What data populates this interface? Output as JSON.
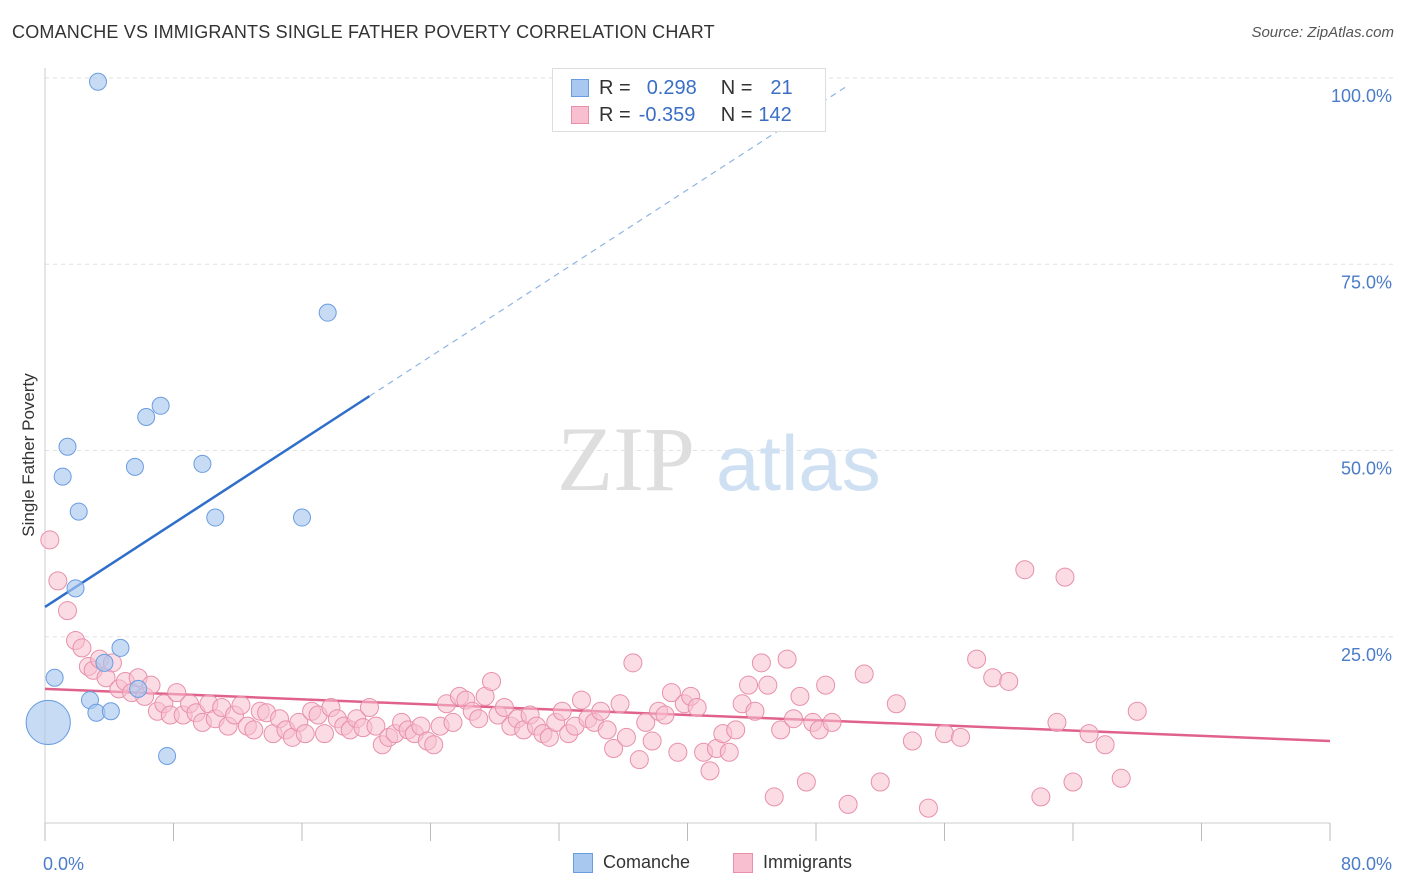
{
  "title": "COMANCHE VS IMMIGRANTS SINGLE FATHER POVERTY CORRELATION CHART",
  "source": "Source: ZipAtlas.com",
  "watermark": {
    "zip": "ZIP",
    "atlas": "atlas"
  },
  "legend": {
    "rows": [
      {
        "r_label": "R =",
        "r_value": "0.298",
        "n_label": "N =",
        "n_value": "21",
        "color": "#a9c8f0",
        "border": "#6a9de0"
      },
      {
        "r_label": "R =",
        "r_value": "-0.359",
        "n_label": "N =",
        "n_value": "142",
        "color": "#f7bfd0",
        "border": "#e890aa"
      }
    ],
    "bottom": [
      {
        "label": "Comanche",
        "color": "#a9c8f0",
        "border": "#6a9de0"
      },
      {
        "label": "Immigrants",
        "color": "#f7bfd0",
        "border": "#e890aa"
      }
    ]
  },
  "chart_data": {
    "type": "scatter",
    "title": "COMANCHE VS IMMIGRANTS SINGLE FATHER POVERTY CORRELATION CHART",
    "xlabel": "",
    "ylabel": "Single Father Poverty",
    "xlim": [
      0,
      80
    ],
    "ylim": [
      0,
      100
    ],
    "x_tick_labels": [
      "0.0%",
      "80.0%"
    ],
    "y_tick_labels": [
      "25.0%",
      "50.0%",
      "75.0%",
      "100.0%"
    ],
    "y_ticks": [
      25,
      50,
      75,
      100
    ],
    "grid": true,
    "legend_position": "top-center",
    "series": [
      {
        "name": "Comanche",
        "color": "#a9c8f0",
        "stroke": "#6a9de0",
        "points": [
          [
            0.2,
            13.5
          ],
          [
            0.6,
            19.5
          ],
          [
            1.1,
            46.5
          ],
          [
            1.4,
            50.5
          ],
          [
            1.9,
            31.5
          ],
          [
            2.1,
            41.8
          ],
          [
            2.8,
            16.5
          ],
          [
            3.2,
            14.8
          ],
          [
            4.1,
            15.0
          ],
          [
            3.7,
            21.5
          ],
          [
            4.7,
            23.5
          ],
          [
            5.6,
            47.8
          ],
          [
            5.8,
            18.0
          ],
          [
            6.3,
            54.5
          ],
          [
            7.2,
            56.0
          ],
          [
            7.6,
            9.0
          ],
          [
            9.8,
            48.2
          ],
          [
            10.6,
            41.0
          ],
          [
            16.0,
            41.0
          ],
          [
            17.6,
            68.5
          ],
          [
            3.3,
            99.5
          ]
        ],
        "sizes": [
          2.6,
          1,
          1,
          1,
          1,
          1,
          1,
          1,
          1,
          1,
          1,
          1,
          1,
          1,
          1,
          1,
          1,
          1,
          1,
          1,
          1
        ],
        "trend": {
          "x0": 0,
          "y0": 29.0,
          "x1": 20.2,
          "y1": 57.3,
          "dash_x1": 50.0,
          "dash_y1": 99.0
        }
      },
      {
        "name": "Immigrants",
        "color": "#f7bfd0",
        "stroke": "#e890aa",
        "points": [
          [
            0.3,
            38.0
          ],
          [
            0.8,
            32.5
          ],
          [
            1.4,
            28.5
          ],
          [
            1.9,
            24.5
          ],
          [
            2.3,
            23.5
          ],
          [
            2.7,
            21.0
          ],
          [
            3.0,
            20.5
          ],
          [
            3.4,
            22.0
          ],
          [
            3.8,
            19.5
          ],
          [
            4.2,
            21.5
          ],
          [
            4.6,
            18.0
          ],
          [
            5.0,
            19.0
          ],
          [
            5.4,
            17.5
          ],
          [
            5.8,
            19.5
          ],
          [
            6.2,
            17.0
          ],
          [
            6.6,
            18.5
          ],
          [
            7.0,
            15.0
          ],
          [
            7.4,
            16.0
          ],
          [
            7.8,
            14.5
          ],
          [
            8.2,
            17.5
          ],
          [
            8.6,
            14.5
          ],
          [
            9.0,
            16.0
          ],
          [
            9.4,
            14.8
          ],
          [
            9.8,
            13.5
          ],
          [
            10.2,
            16.0
          ],
          [
            10.6,
            14.0
          ],
          [
            11.0,
            15.5
          ],
          [
            11.4,
            13.0
          ],
          [
            11.8,
            14.5
          ],
          [
            12.2,
            15.8
          ],
          [
            12.6,
            13.0
          ],
          [
            13.0,
            12.5
          ],
          [
            13.4,
            15.0
          ],
          [
            13.8,
            14.8
          ],
          [
            14.2,
            12.0
          ],
          [
            14.6,
            14.0
          ],
          [
            15.0,
            12.5
          ],
          [
            15.4,
            11.5
          ],
          [
            15.8,
            13.5
          ],
          [
            16.2,
            12.0
          ],
          [
            16.6,
            15.0
          ],
          [
            17.0,
            14.5
          ],
          [
            17.4,
            12.0
          ],
          [
            17.8,
            15.5
          ],
          [
            18.2,
            14.0
          ],
          [
            18.6,
            13.0
          ],
          [
            19.0,
            12.5
          ],
          [
            19.4,
            14.0
          ],
          [
            19.8,
            12.8
          ],
          [
            20.2,
            15.5
          ],
          [
            20.6,
            13.0
          ],
          [
            21.0,
            10.5
          ],
          [
            21.4,
            11.5
          ],
          [
            21.8,
            12.0
          ],
          [
            22.2,
            13.5
          ],
          [
            22.6,
            12.5
          ],
          [
            23.0,
            12.0
          ],
          [
            23.4,
            13.0
          ],
          [
            23.8,
            11.0
          ],
          [
            24.2,
            10.5
          ],
          [
            24.6,
            13.0
          ],
          [
            25.0,
            16.0
          ],
          [
            25.4,
            13.5
          ],
          [
            25.8,
            17.0
          ],
          [
            26.2,
            16.5
          ],
          [
            26.6,
            15.0
          ],
          [
            27.0,
            14.0
          ],
          [
            27.4,
            17.0
          ],
          [
            27.8,
            19.0
          ],
          [
            28.2,
            14.5
          ],
          [
            28.6,
            15.5
          ],
          [
            29.0,
            13.0
          ],
          [
            29.4,
            14.0
          ],
          [
            29.8,
            12.5
          ],
          [
            30.2,
            14.5
          ],
          [
            30.6,
            13.0
          ],
          [
            31.0,
            12.0
          ],
          [
            31.4,
            11.5
          ],
          [
            31.8,
            13.5
          ],
          [
            32.2,
            15.0
          ],
          [
            32.6,
            12.0
          ],
          [
            33.0,
            13.0
          ],
          [
            33.4,
            16.5
          ],
          [
            33.8,
            14.0
          ],
          [
            34.2,
            13.5
          ],
          [
            34.6,
            15.0
          ],
          [
            35.0,
            12.5
          ],
          [
            35.4,
            10.0
          ],
          [
            35.8,
            16.0
          ],
          [
            36.2,
            11.5
          ],
          [
            36.6,
            21.5
          ],
          [
            37.0,
            8.5
          ],
          [
            37.4,
            13.5
          ],
          [
            37.8,
            11.0
          ],
          [
            38.2,
            15.0
          ],
          [
            38.6,
            14.5
          ],
          [
            39.0,
            17.5
          ],
          [
            39.4,
            9.5
          ],
          [
            39.8,
            16.0
          ],
          [
            40.2,
            17.0
          ],
          [
            40.6,
            15.5
          ],
          [
            41.0,
            9.5
          ],
          [
            41.4,
            7.0
          ],
          [
            41.8,
            10.0
          ],
          [
            42.2,
            12.0
          ],
          [
            42.6,
            9.5
          ],
          [
            43.0,
            12.5
          ],
          [
            43.4,
            16.0
          ],
          [
            43.8,
            18.5
          ],
          [
            44.2,
            15.0
          ],
          [
            44.6,
            21.5
          ],
          [
            45.0,
            18.5
          ],
          [
            45.4,
            3.5
          ],
          [
            45.8,
            12.5
          ],
          [
            46.2,
            22.0
          ],
          [
            46.6,
            14.0
          ],
          [
            47.0,
            17.0
          ],
          [
            47.4,
            5.5
          ],
          [
            47.8,
            13.5
          ],
          [
            48.2,
            12.5
          ],
          [
            48.6,
            18.5
          ],
          [
            49.0,
            13.5
          ],
          [
            50.0,
            2.5
          ],
          [
            51.0,
            20.0
          ],
          [
            52.0,
            5.5
          ],
          [
            53.0,
            16.0
          ],
          [
            54.0,
            11.0
          ],
          [
            55.0,
            2.0
          ],
          [
            56.0,
            12.0
          ],
          [
            57.0,
            11.5
          ],
          [
            58.0,
            22.0
          ],
          [
            59.0,
            19.5
          ],
          [
            60.0,
            19.0
          ],
          [
            61.0,
            34.0
          ],
          [
            62.0,
            3.5
          ],
          [
            63.0,
            13.5
          ],
          [
            64.0,
            5.5
          ],
          [
            65.0,
            12.0
          ],
          [
            66.0,
            10.5
          ],
          [
            63.5,
            33.0
          ],
          [
            67.0,
            6.0
          ],
          [
            68.0,
            15.0
          ]
        ],
        "trend": {
          "x0": 0,
          "y0": 18.0,
          "x1": 80,
          "y1": 11.0
        }
      }
    ]
  }
}
